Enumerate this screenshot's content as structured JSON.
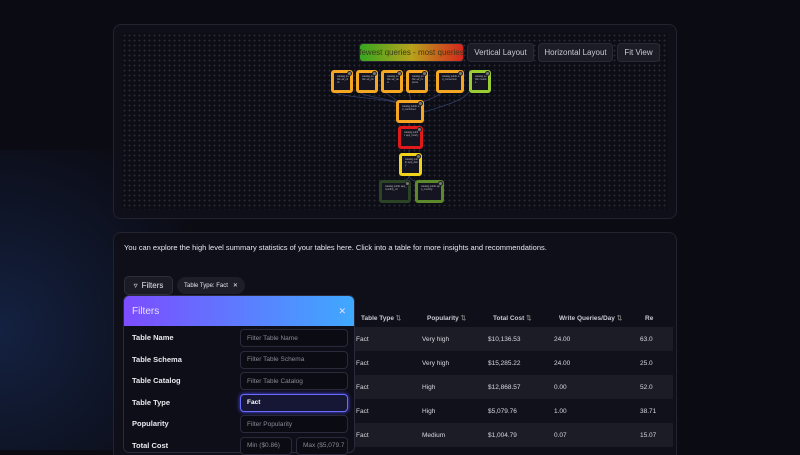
{
  "graph": {
    "legend": "fewest queries - most queries",
    "buttons": [
      "Vertical Layout",
      "Horizontal Layout",
      "Fit View"
    ],
    "colors": {
      "low": "#35a81f",
      "high": "#d6261d"
    },
    "nodes": [
      {
        "label": "catalog public ad_click",
        "color": "#f5a623"
      },
      {
        "label": "catalog public ad_pin",
        "color": "#f5a623"
      },
      {
        "label": "catalog public ad_view",
        "color": "#f5a623"
      },
      {
        "label": "catalog public ad_impress",
        "color": "#f5a623"
      },
      {
        "label": "catalog public ad_conversion",
        "color": "#f5a623"
      },
      {
        "label": "catalog public creative",
        "color": "#9acd32"
      },
      {
        "label": "catalog public ad_combined",
        "color": "#f5a623"
      },
      {
        "label": "catalog public app_hourly",
        "color": "#e0191b"
      },
      {
        "label": "catalog public app_daily",
        "color": "#f2d21a"
      },
      {
        "label": "catalog public app_monthly_v2",
        "color": "#2c4426"
      },
      {
        "label": "catalog public app_monthly",
        "color": "#5c8a2a"
      }
    ]
  },
  "summary": {
    "intro": "You can explore the high level summary statistics of your tables here. Click into a table for more insights and recommendations.",
    "filters_button": "Filters",
    "chip": "Table Type: Fact",
    "columns": [
      "Table Type",
      "Popularity",
      "Total Cost",
      "Write Queries/Day",
      "Re"
    ],
    "rows": [
      [
        "Fact",
        "Very high",
        "$10,136.53",
        "24.00",
        "63.0"
      ],
      [
        "Fact",
        "Very high",
        "$15,285.22",
        "24.00",
        "25.0"
      ],
      [
        "Fact",
        "High",
        "$12,868.57",
        "0.00",
        "52.0"
      ],
      [
        "Fact",
        "High",
        "$5,079.76",
        "1.00",
        "38.71"
      ],
      [
        "Fact",
        "Medium",
        "$1,004.79",
        "0.07",
        "15.07"
      ]
    ]
  },
  "filters": {
    "title": "Filters",
    "fields": [
      {
        "label": "Table Name",
        "placeholder": "Filter Table Name",
        "value": ""
      },
      {
        "label": "Table Schema",
        "placeholder": "Filter Table Schema",
        "value": ""
      },
      {
        "label": "Table Catalog",
        "placeholder": "Filter Table Catalog",
        "value": ""
      },
      {
        "label": "Table Type",
        "placeholder": "",
        "value": "Fact"
      },
      {
        "label": "Popularity",
        "placeholder": "Filter Popularity",
        "value": ""
      },
      {
        "label": "Total Cost",
        "min_placeholder": "Min ($0.86)",
        "max_placeholder": "Max ($5,079.7"
      }
    ]
  }
}
